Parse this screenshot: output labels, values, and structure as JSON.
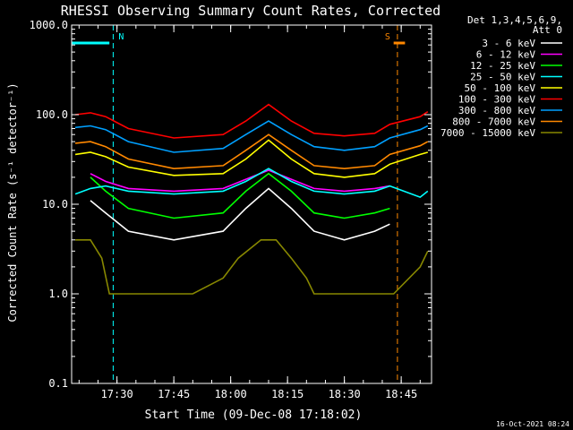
{
  "chart_data": {
    "type": "line",
    "title": "RHESSI Observing Summary Count Rates, Corrected",
    "ylabel": "Corrected Count Rate (s⁻¹ detector⁻¹)",
    "xlabel": "Start Time (09-Dec-08 17:18:02)",
    "y_scale": "log",
    "ylim": [
      0.1,
      1000
    ],
    "xlim": [
      "17:18:02",
      "18:53:00"
    ],
    "y_ticks": [
      "0.1",
      "1.0",
      "10.0",
      "100.0",
      "1000.0"
    ],
    "x_ticks": [
      "17:30",
      "17:45",
      "18:00",
      "18:15",
      "18:30",
      "18:45"
    ],
    "legend_header": [
      "Det 1,3,4,5,6,9,",
      "Att 0"
    ],
    "legend_placement": "right",
    "footer_date": "16-Oct-2021 08:24",
    "series": [
      {
        "name": "3 - 6 keV",
        "color": "#ffffff",
        "x": [
          "17:23",
          "17:27",
          "17:33",
          "17:45",
          "17:58",
          "18:04",
          "18:10",
          "18:16",
          "18:22",
          "18:30",
          "18:38",
          "18:42"
        ],
        "y": [
          11,
          8,
          5,
          4,
          5,
          9,
          15,
          9,
          5,
          4,
          5,
          6
        ]
      },
      {
        "name": "6 - 12 keV",
        "color": "#ff00ff",
        "x": [
          "17:23",
          "17:27",
          "17:33",
          "17:45",
          "17:58",
          "18:04",
          "18:10",
          "18:16",
          "18:22",
          "18:30",
          "18:38",
          "18:42"
        ],
        "y": [
          22,
          18,
          15,
          14,
          15,
          19,
          24,
          19,
          15,
          14,
          15,
          16
        ]
      },
      {
        "name": "12 - 25 keV",
        "color": "#00ff00",
        "x": [
          "17:23",
          "17:27",
          "17:33",
          "17:45",
          "17:58",
          "18:04",
          "18:10",
          "18:16",
          "18:22",
          "18:30",
          "18:38",
          "18:42"
        ],
        "y": [
          20,
          14,
          9,
          7,
          8,
          14,
          22,
          14,
          8,
          7,
          8,
          9
        ]
      },
      {
        "name": "25 - 50 keV",
        "color": "#00ffff",
        "x": [
          "17:19",
          "17:23",
          "17:27",
          "17:33",
          "17:45",
          "17:58",
          "18:04",
          "18:10",
          "18:16",
          "18:22",
          "18:30",
          "18:38",
          "18:42",
          "18:50",
          "18:52"
        ],
        "y": [
          13,
          15,
          16,
          14,
          13,
          14,
          18,
          25,
          18,
          14,
          13,
          14,
          16,
          12,
          14
        ]
      },
      {
        "name": "50 - 100 keV",
        "color": "#ffff00",
        "x": [
          "17:19",
          "17:23",
          "17:27",
          "17:33",
          "17:45",
          "17:58",
          "18:04",
          "18:10",
          "18:16",
          "18:22",
          "18:30",
          "18:38",
          "18:42",
          "18:50",
          "18:52"
        ],
        "y": [
          36,
          38,
          34,
          26,
          21,
          22,
          32,
          52,
          32,
          22,
          20,
          22,
          28,
          36,
          38
        ]
      },
      {
        "name": "100 - 300 keV",
        "color": "#ff0000",
        "x": [
          "17:19",
          "17:23",
          "17:27",
          "17:33",
          "17:45",
          "17:58",
          "18:04",
          "18:10",
          "18:16",
          "18:22",
          "18:30",
          "18:38",
          "18:42",
          "18:50",
          "18:52"
        ],
        "y": [
          100,
          105,
          95,
          70,
          55,
          60,
          85,
          130,
          85,
          62,
          58,
          62,
          78,
          95,
          108
        ]
      },
      {
        "name": "300 - 800 keV",
        "color": "#00a0ff",
        "x": [
          "17:19",
          "17:23",
          "17:27",
          "17:33",
          "17:45",
          "17:58",
          "18:04",
          "18:10",
          "18:16",
          "18:22",
          "18:30",
          "18:38",
          "18:42",
          "18:50",
          "18:52"
        ],
        "y": [
          72,
          75,
          68,
          50,
          38,
          42,
          60,
          85,
          60,
          44,
          40,
          44,
          55,
          68,
          75
        ]
      },
      {
        "name": "800 - 7000 keV",
        "color": "#ff8800",
        "x": [
          "17:19",
          "17:23",
          "17:27",
          "17:33",
          "17:45",
          "17:58",
          "18:04",
          "18:10",
          "18:16",
          "18:22",
          "18:30",
          "18:38",
          "18:42",
          "18:50",
          "18:52"
        ],
        "y": [
          48,
          50,
          44,
          32,
          25,
          27,
          40,
          60,
          40,
          27,
          25,
          27,
          36,
          45,
          50
        ]
      },
      {
        "name": "7000 - 15000 keV",
        "color": "#888800",
        "x": [
          "17:19",
          "17:23",
          "17:26",
          "17:28",
          "17:33",
          "17:50",
          "17:58",
          "18:02",
          "18:08",
          "18:12",
          "18:16",
          "18:20",
          "18:22",
          "18:43",
          "18:50",
          "18:52"
        ],
        "y": [
          4,
          4,
          2.5,
          1,
          1,
          1,
          1.5,
          2.5,
          4,
          4,
          2.5,
          1.5,
          1,
          1,
          2,
          3
        ]
      }
    ],
    "annotations": [
      {
        "label": "N",
        "time": "17:29",
        "color": "#00ffff",
        "bar_from": "17:18:02",
        "bar_to": "17:28"
      },
      {
        "label": "S",
        "time": "18:44",
        "color": "#ff8800",
        "bar_from": "18:43",
        "bar_to": "18:46"
      }
    ]
  }
}
